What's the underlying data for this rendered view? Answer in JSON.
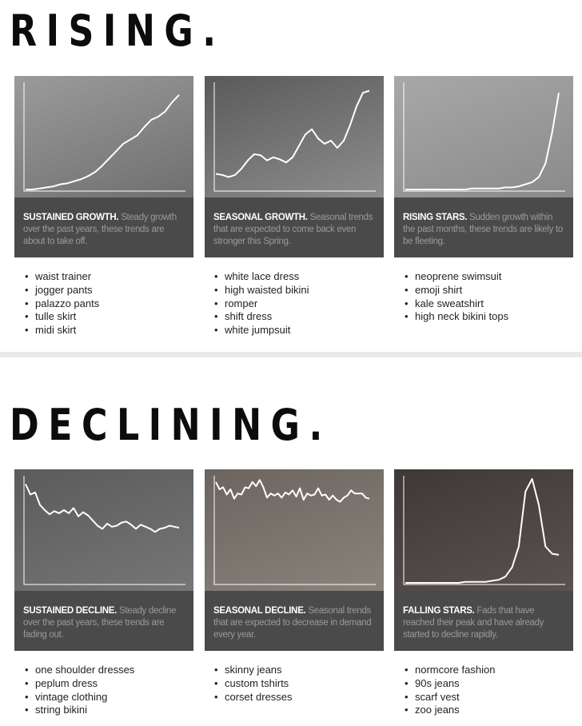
{
  "rising": {
    "title": "RISING.",
    "cards": [
      {
        "heading": "SUSTAINED GROWTH.",
        "text": "Steady growth over the past years, these trends are about to take off.",
        "items": [
          "waist trainer",
          "jogger pants",
          "palazzo pants",
          "tulle skirt",
          "midi skirt"
        ],
        "photo_colors": [
          "#9b9b9b",
          "#6f6f6f"
        ]
      },
      {
        "heading": "SEASONAL GROWTH.",
        "text": "Seasonal trends that are expected to come back even stronger this Spring.",
        "items": [
          "white lace dress",
          "high waisted bikini",
          "romper",
          "shift dress",
          "white jumpsuit"
        ],
        "photo_colors": [
          "#5a5a5a",
          "#8d8d8d"
        ]
      },
      {
        "heading": "RISING STARS.",
        "text": "Sudden growth within the past months, these trends are likely to be fleeting.",
        "items": [
          "neoprene swimsuit",
          "emoji shirt",
          "kale sweatshirt",
          "high neck bikini tops"
        ],
        "photo_colors": [
          "#a8a8a8",
          "#8a8a8a"
        ]
      }
    ]
  },
  "declining": {
    "title": "DECLINING.",
    "cards": [
      {
        "heading": "SUSTAINED DECLINE.",
        "text": "Steady decline over the past years, these trends are fading out.",
        "items": [
          "one shoulder dresses",
          "peplum dress",
          "vintage clothing",
          "string bikini"
        ],
        "photo_colors": [
          "#5b5b5b",
          "#767676"
        ]
      },
      {
        "heading": "SEASONAL DECLINE.",
        "text": "Seasonal trends that are expected to decrease in demand every year.",
        "items": [
          "skinny jeans",
          "custom tshirts",
          "corset dresses"
        ],
        "photo_colors": [
          "#6c645e",
          "#8a837c"
        ]
      },
      {
        "heading": "FALLING STARS.",
        "text": "Fads that have reached their peak and have already started to decline rapidly.",
        "items": [
          "normcore fashion",
          "90s jeans",
          "scarf vest",
          "zoo jeans"
        ],
        "photo_colors": [
          "#3e3836",
          "#5a5250"
        ]
      }
    ]
  },
  "chart_data": [
    {
      "type": "line",
      "title": "SUSTAINED GROWTH.",
      "xlabel": "",
      "ylabel": "",
      "line_color": "#ffffff",
      "y": [
        0,
        0,
        1,
        2,
        3,
        5,
        6,
        8,
        10,
        13,
        17,
        23,
        30,
        37,
        44,
        48,
        52,
        60,
        67,
        70,
        75,
        84,
        91
      ]
    },
    {
      "type": "line",
      "title": "SEASONAL GROWTH.",
      "xlabel": "",
      "ylabel": "",
      "line_color": "#ffffff",
      "y": [
        15,
        14,
        12,
        14,
        20,
        28,
        34,
        33,
        28,
        31,
        29,
        26,
        31,
        42,
        53,
        58,
        49,
        44,
        47,
        40,
        47,
        62,
        80,
        93,
        95
      ]
    },
    {
      "type": "line",
      "title": "RISING STARS.",
      "xlabel": "",
      "ylabel": "",
      "line_color": "#ffffff",
      "y": [
        0,
        0,
        0,
        0,
        0,
        0,
        0,
        0,
        0,
        0,
        1,
        1,
        1,
        1,
        1,
        2,
        2,
        3,
        5,
        7,
        12,
        25,
        55,
        93
      ]
    },
    {
      "type": "line",
      "title": "SUSTAINED DECLINE.",
      "xlabel": "",
      "ylabel": "",
      "line_color": "#ffffff",
      "y": [
        95,
        85,
        87,
        75,
        70,
        66,
        69,
        67,
        70,
        67,
        72,
        64,
        68,
        65,
        60,
        55,
        52,
        57,
        54,
        55,
        58,
        59,
        56,
        52,
        56,
        54,
        52,
        49,
        52,
        53,
        55,
        54,
        53
      ]
    },
    {
      "type": "line",
      "title": "SEASONAL DECLINE.",
      "xlabel": "",
      "ylabel": "",
      "line_color": "#ffffff",
      "y": [
        97,
        90,
        92,
        85,
        90,
        81,
        86,
        85,
        92,
        91,
        97,
        93,
        99,
        92,
        82,
        86,
        84,
        86,
        82,
        87,
        85,
        89,
        83,
        91,
        80,
        86,
        84,
        85,
        91,
        84,
        85,
        80,
        84,
        80,
        78,
        82,
        84,
        89,
        86,
        86,
        86,
        82,
        81
      ]
    },
    {
      "type": "line",
      "title": "FALLING STARS.",
      "xlabel": "",
      "ylabel": "",
      "line_color": "#ffffff",
      "y": [
        0,
        0,
        0,
        0,
        0,
        0,
        0,
        0,
        0,
        1,
        1,
        1,
        1,
        2,
        3,
        6,
        15,
        35,
        88,
        100,
        75,
        35,
        28,
        27
      ]
    }
  ]
}
